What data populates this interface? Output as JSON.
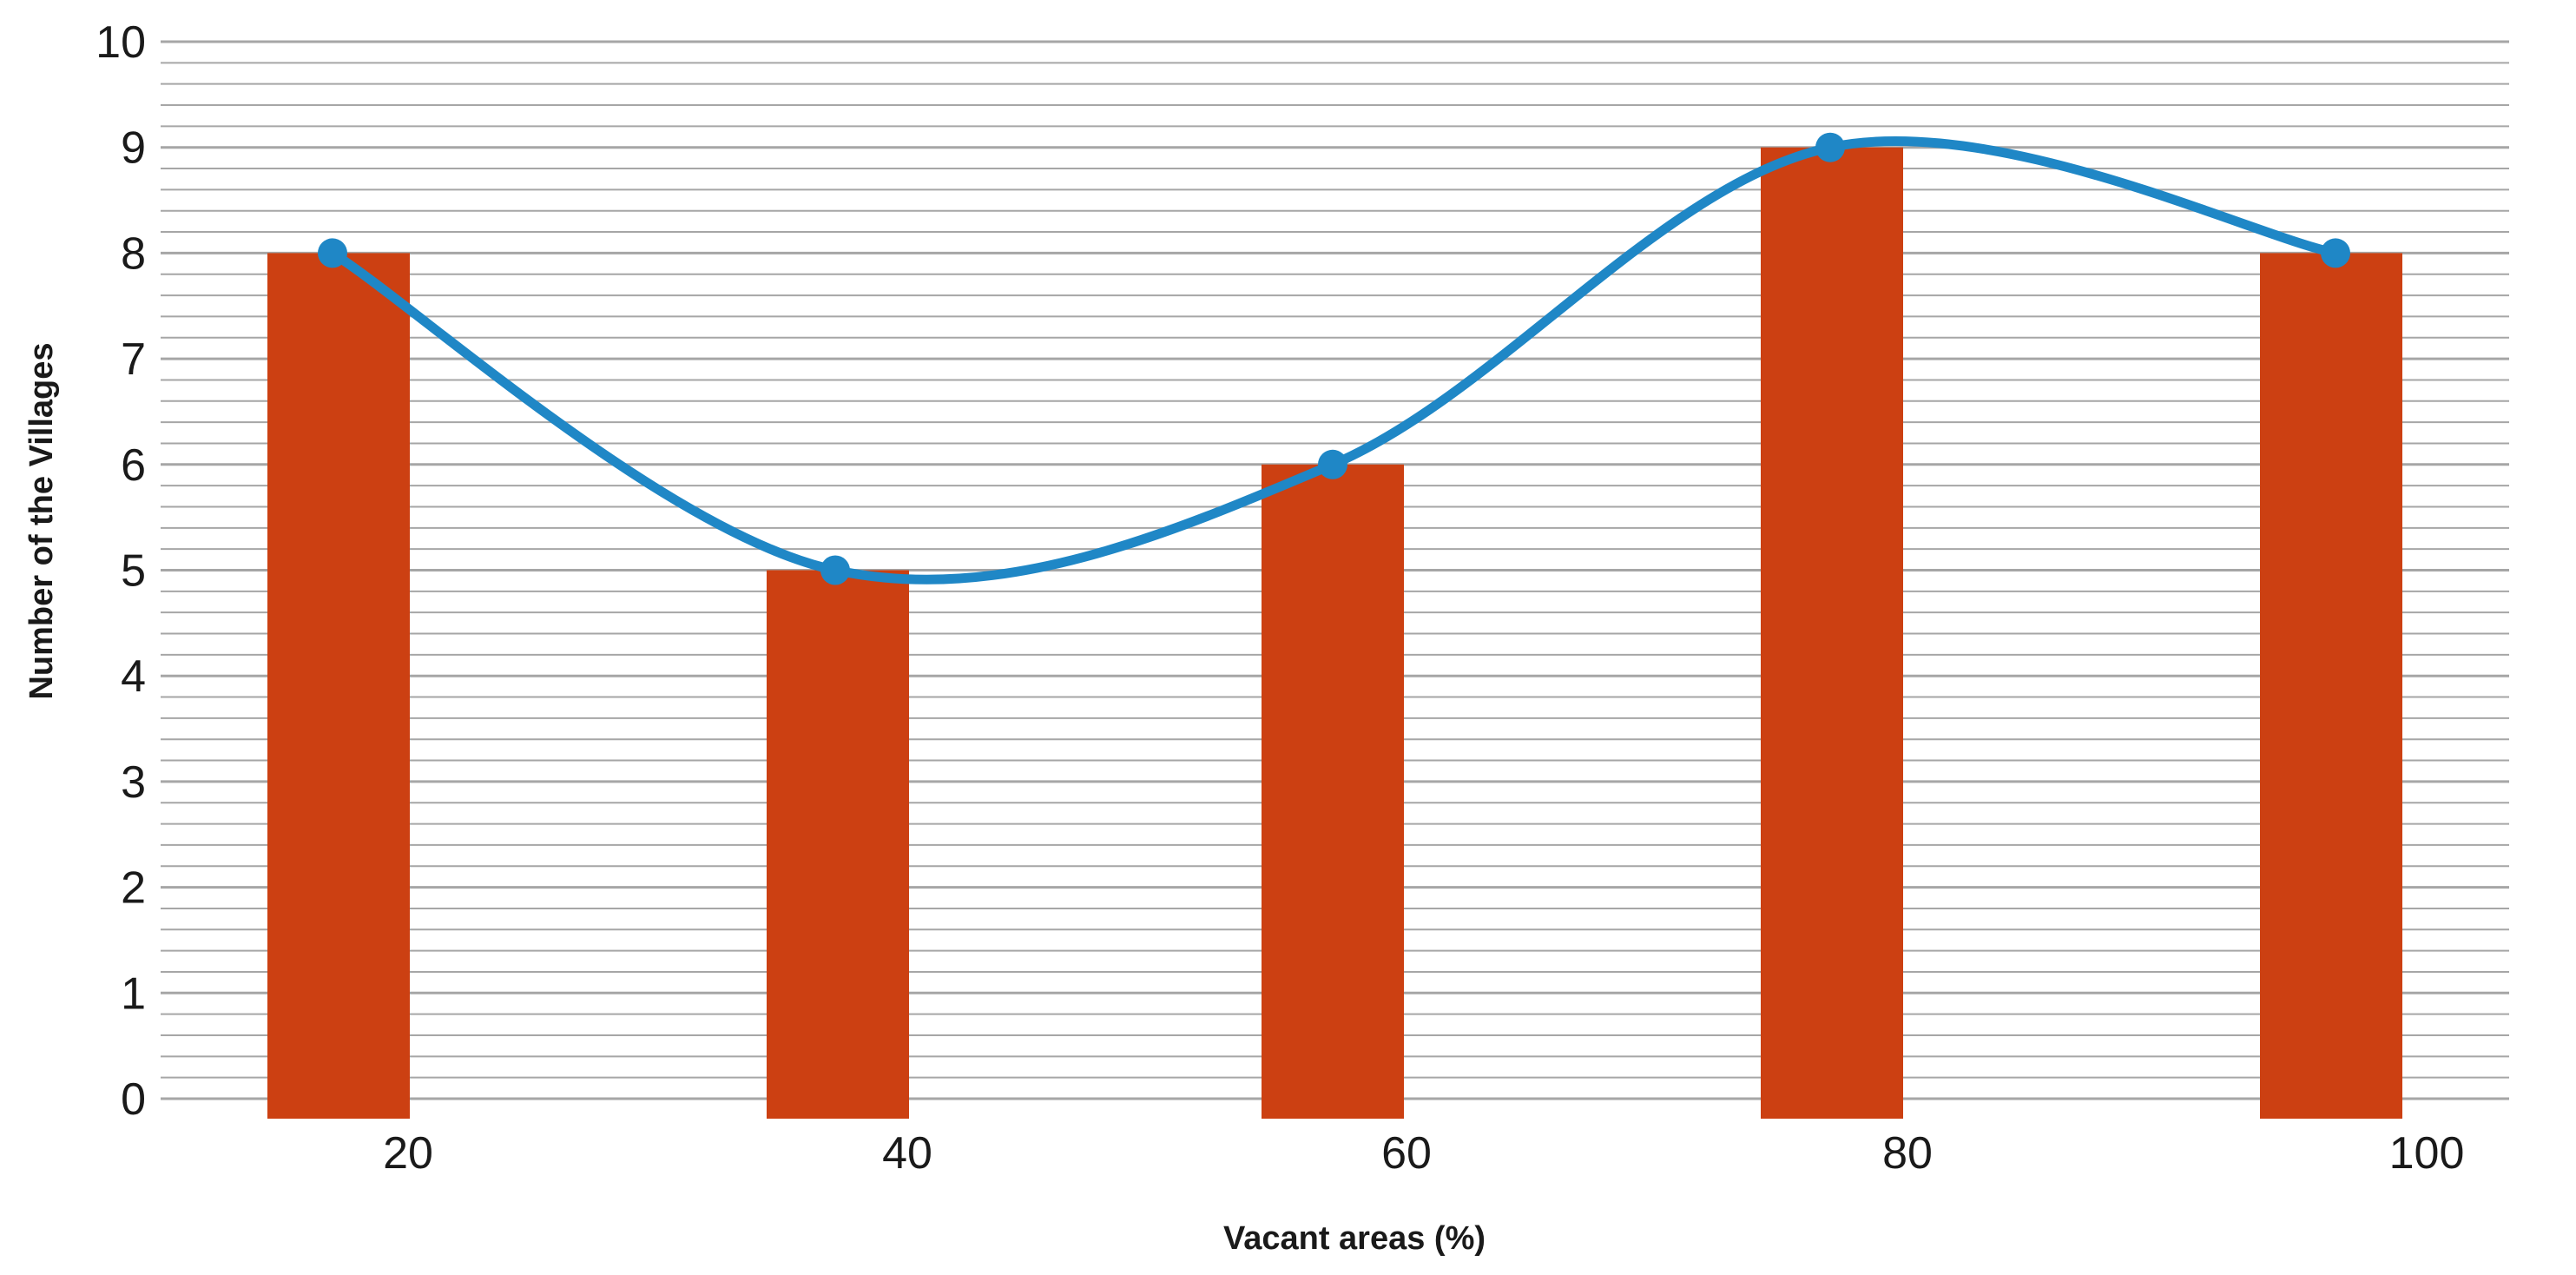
{
  "chart_data": {
    "type": "bar",
    "categories": [
      "20",
      "40",
      "60",
      "80",
      "100"
    ],
    "series": [
      {
        "type": "bar",
        "values": [
          8,
          5,
          6,
          9,
          8
        ]
      },
      {
        "type": "line",
        "smooth": true,
        "markers": true,
        "values": [
          8,
          5,
          6,
          9,
          8
        ]
      }
    ],
    "xlabel": "Vacant areas (%)",
    "ylabel": "Number of the Villages",
    "ylim": [
      0,
      10
    ],
    "yticks": [
      "0",
      "1",
      "2",
      "3",
      "4",
      "5",
      "6",
      "7",
      "8",
      "9",
      "10"
    ],
    "grid": true,
    "colors": {
      "bar": "#cc4012",
      "line": "#1f87c6",
      "grid": "#a6a6a6",
      "text": "#1a1a1a"
    }
  }
}
